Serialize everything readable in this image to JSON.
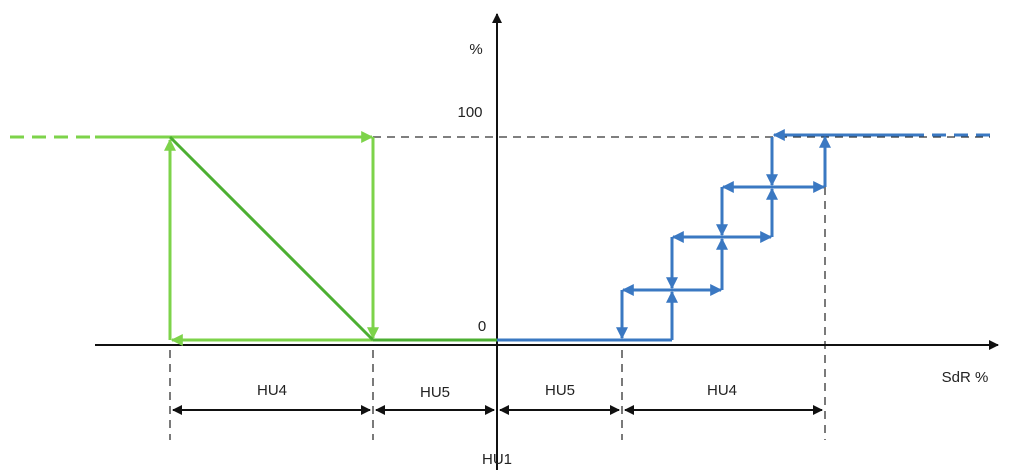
{
  "axis": {
    "y_label": "%",
    "y_top": "100",
    "y_zero": "0",
    "x_label": "SdR %"
  },
  "bands": [
    "HU4",
    "HU5",
    "HU5",
    "HU4"
  ],
  "origin_label": "HU1"
}
